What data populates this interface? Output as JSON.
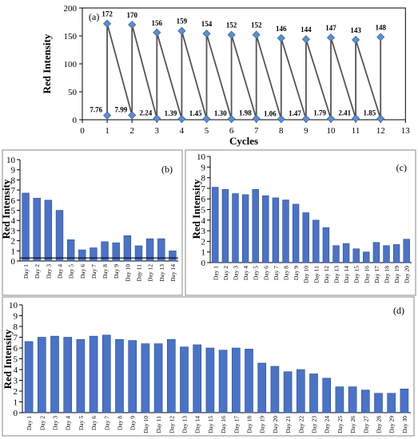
{
  "chart_data": [
    {
      "type": "line",
      "panel_label": "(a)",
      "xlabel": "Cycles",
      "ylabel": "Red Intensity",
      "xlim": [
        0,
        13
      ],
      "ylim": [
        0,
        200
      ],
      "x_ticks": [
        0,
        1,
        2,
        3,
        4,
        5,
        6,
        7,
        8,
        9,
        10,
        11,
        12,
        13
      ],
      "y_ticks": [
        0,
        50,
        100,
        150,
        200
      ],
      "grid": false,
      "high_values": [
        172,
        170,
        156,
        159,
        154,
        152,
        152,
        146,
        144,
        147,
        143,
        148
      ],
      "low_values": [
        7.76,
        7.99,
        2.24,
        1.39,
        1.45,
        1.3,
        1.98,
        1.06,
        1.47,
        1.79,
        2.41,
        1.85
      ],
      "high_labels": [
        "172",
        "170",
        "156",
        "159",
        "154",
        "152",
        "152",
        "146",
        "144",
        "147",
        "143",
        "148"
      ],
      "low_labels": [
        "7.76",
        "7.99",
        "2.24",
        "1.39",
        "1.45",
        "1.30",
        "1.98",
        "1.06",
        "1.47",
        "1.79",
        "2.41",
        "1.85"
      ]
    },
    {
      "type": "bar",
      "panel_label": "(b)",
      "ylabel": "Red Intensity",
      "ylim": [
        0,
        10
      ],
      "y_ticks": [
        0,
        1,
        2,
        3,
        4,
        5,
        6,
        7,
        8,
        9,
        10
      ],
      "categories": [
        "Day 1",
        "Day 2",
        "Day 3",
        "Day 4",
        "Day 5",
        "Day 6",
        "Day 7",
        "Day 8",
        "Day 9",
        "Day 10",
        "Day 11",
        "Day 12",
        "Day 13",
        "Day 14"
      ],
      "values": [
        6.7,
        6.2,
        6.0,
        5.0,
        2.1,
        1.1,
        1.3,
        1.9,
        1.8,
        2.5,
        1.5,
        2.2,
        2.2,
        1.0
      ],
      "baseline_value": 0.3
    },
    {
      "type": "bar",
      "panel_label": "(c)",
      "ylabel": "Red Intensity",
      "ylim": [
        0,
        10
      ],
      "y_ticks": [
        0,
        1,
        2,
        3,
        4,
        5,
        6,
        7,
        8,
        9,
        10
      ],
      "categories": [
        "Day 1",
        "Day 2",
        "Day 3",
        "Day 4",
        "Day 5",
        "Day 6",
        "Day 7",
        "Day 8",
        "Day 9",
        "Day 10",
        "Day 11",
        "Day 12",
        "Day 13",
        "Day 14",
        "Day 15",
        "Day 16",
        "Day 17",
        "Day 18",
        "Day 19",
        "Day 20"
      ],
      "values": [
        7.1,
        6.9,
        6.5,
        6.4,
        6.9,
        6.3,
        6.1,
        5.9,
        5.5,
        4.7,
        4.0,
        3.3,
        1.6,
        1.8,
        1.3,
        1.0,
        1.9,
        1.6,
        1.7,
        2.2
      ]
    },
    {
      "type": "bar",
      "panel_label": "(d)",
      "ylabel": "Red Intensity",
      "ylim": [
        0,
        10
      ],
      "y_ticks": [
        0,
        1,
        2,
        3,
        4,
        5,
        6,
        7,
        8,
        9,
        10
      ],
      "categories": [
        "Day 1",
        "Day 2",
        "Day 3",
        "Day 4",
        "Day 5",
        "Day 6",
        "Day 7",
        "Day 8",
        "Day 9",
        "Day 10",
        "Day 11",
        "Day 12",
        "Day 13",
        "Day 14",
        "Day 15",
        "Day 16",
        "Day 17",
        "Day 18",
        "Day 19",
        "Day 20",
        "Day 21",
        "Day 22",
        "Day 23",
        "Day 24",
        "Day 25",
        "Day 26",
        "Day 27",
        "Day 28",
        "Day 29",
        "Day 30"
      ],
      "values": [
        6.6,
        7.0,
        7.1,
        7.0,
        6.8,
        7.1,
        7.2,
        6.8,
        6.7,
        6.4,
        6.4,
        6.8,
        6.1,
        6.3,
        6.0,
        5.8,
        6.0,
        5.9,
        4.6,
        4.3,
        3.8,
        4.0,
        3.6,
        3.2,
        2.4,
        2.4,
        2.1,
        1.8,
        1.8,
        2.2
      ]
    }
  ],
  "colors": {
    "bar_fill": "#4a72c8",
    "bar_edge": "#2c4f96",
    "marker_fill": "#5b8fd0",
    "connector_line": "#555555",
    "axis": "#000000"
  }
}
